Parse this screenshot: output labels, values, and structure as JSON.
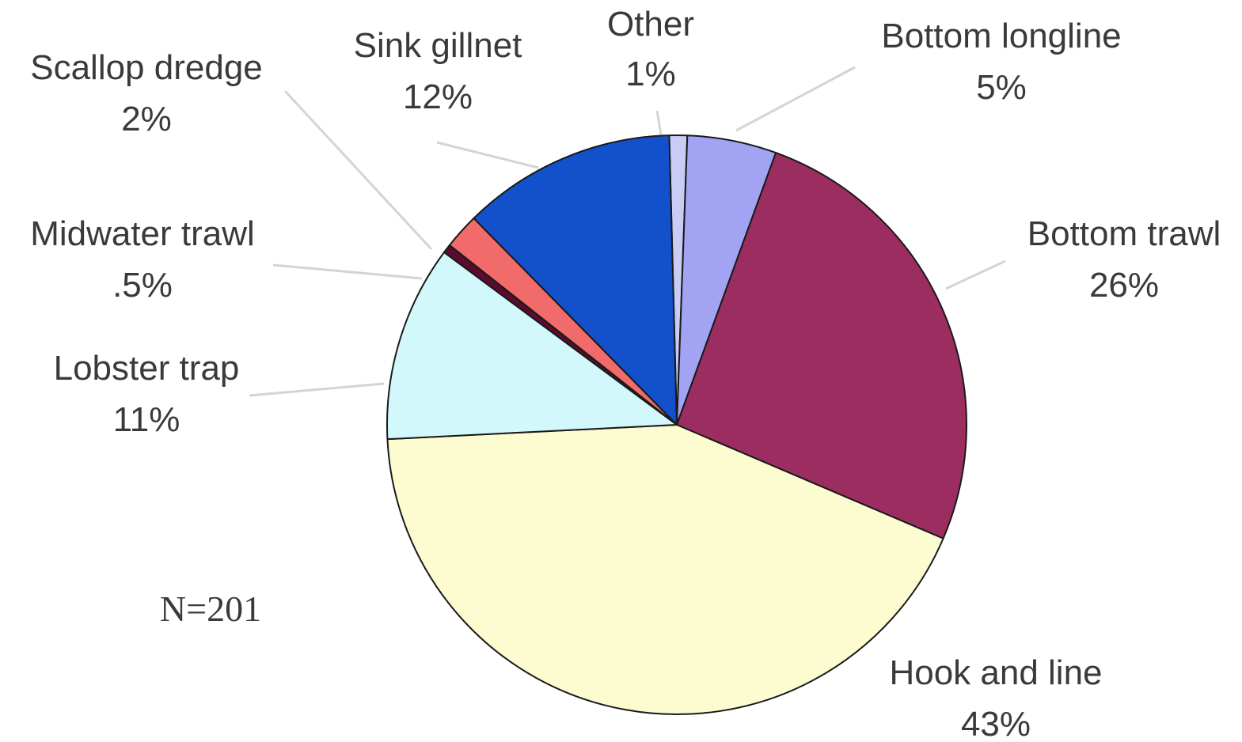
{
  "chart_data": {
    "type": "pie",
    "title": "",
    "annotation": "N=201",
    "slices": [
      {
        "name": "Other",
        "pct_label": "1%",
        "value": 1,
        "color": "#c9ccf5"
      },
      {
        "name": "Bottom longline",
        "pct_label": "5%",
        "value": 5,
        "color": "#a3a3f4"
      },
      {
        "name": "Bottom trawl",
        "pct_label": "26%",
        "value": 26,
        "color": "#9c2d61"
      },
      {
        "name": "Hook and line",
        "pct_label": "43%",
        "value": 43,
        "color": "#fdfbd0"
      },
      {
        "name": "Lobster trap",
        "pct_label": "11%",
        "value": 11,
        "color": "#d2f8fc"
      },
      {
        "name": "Midwater trawl",
        "pct_label": ".5%",
        "value": 0.5,
        "color": "#5a0b2e"
      },
      {
        "name": "Scallop dredge",
        "pct_label": "2%",
        "value": 2,
        "color": "#f26b6b"
      },
      {
        "name": "Sink gillnet",
        "pct_label": "12%",
        "value": 12,
        "color": "#1350cc"
      }
    ]
  }
}
